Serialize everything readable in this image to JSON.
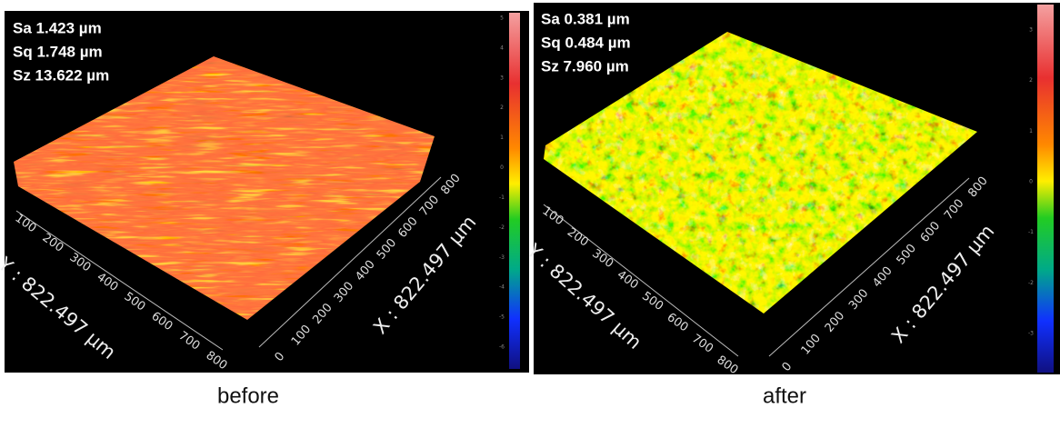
{
  "panels": [
    {
      "stats": [
        "Sa 1.423 µm",
        "Sq 1.748 µm",
        "Sz 13.622 µm"
      ],
      "y_axis_label": "Y : 822.497 µm",
      "x_axis_label": "X : 822.497 µm",
      "y_ticks": [
        "100",
        "200",
        "300",
        "400",
        "500",
        "600",
        "700",
        "800"
      ],
      "x_ticks": [
        "0",
        "100",
        "200",
        "300",
        "400",
        "500",
        "600",
        "700",
        "800"
      ],
      "colorbar_ticks": [
        "5",
        "4",
        "3",
        "2",
        "1",
        "0",
        "-1",
        "-2",
        "-3",
        "-4",
        "-5",
        "-6"
      ],
      "caption": "before"
    },
    {
      "stats": [
        "Sa 0.381 µm",
        "Sq 0.484 µm",
        "Sz 7.960 µm"
      ],
      "y_axis_label": "Y : 822.497 µm",
      "x_axis_label": "X : 822.497 µm",
      "y_ticks": [
        "100",
        "200",
        "300",
        "400",
        "500",
        "600",
        "700",
        "800"
      ],
      "x_ticks": [
        "0",
        "100",
        "200",
        "300",
        "400",
        "500",
        "600",
        "700",
        "800"
      ],
      "colorbar_ticks": [
        "3",
        "2",
        "1",
        "0",
        "-1",
        "-2",
        "-3"
      ],
      "caption": "after"
    }
  ]
}
